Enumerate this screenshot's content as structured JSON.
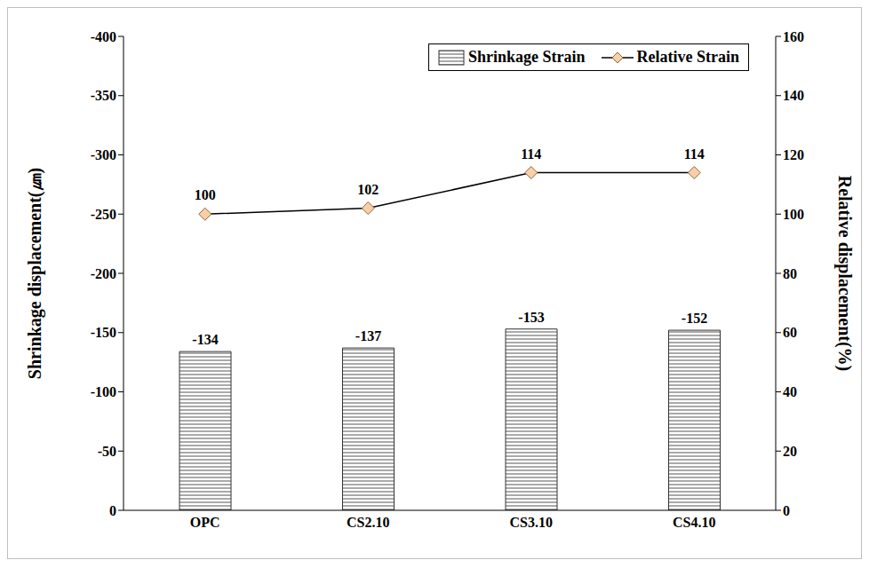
{
  "chart_data": {
    "type": "bar",
    "categories": [
      "OPC",
      "CS2.10",
      "CS3.10",
      "CS4.10"
    ],
    "series": [
      {
        "name": "Shrinkage Strain",
        "type": "bar",
        "color": "#ffffff",
        "values": [
          -134,
          -137,
          -153,
          -152
        ]
      },
      {
        "name": "Relative Strain",
        "type": "line",
        "axis": "y2",
        "color": "#f8cfa6",
        "marker": "diamond",
        "line_style": "solid",
        "values": [
          100,
          102,
          114,
          114
        ]
      }
    ],
    "y_label": "Shrinkage displacement(㎛)",
    "y2_label": "Relative displacement(%)",
    "ylim": [
      0,
      -400
    ],
    "yticks": [
      0,
      -50,
      -100,
      -150,
      -200,
      -250,
      -300,
      -350,
      -400
    ],
    "y2lim": [
      0,
      160
    ],
    "y2ticks": [
      0,
      20,
      40,
      60,
      80,
      100,
      120,
      140,
      160
    ],
    "grid": false,
    "legend": "top-right",
    "data_labels": true
  }
}
